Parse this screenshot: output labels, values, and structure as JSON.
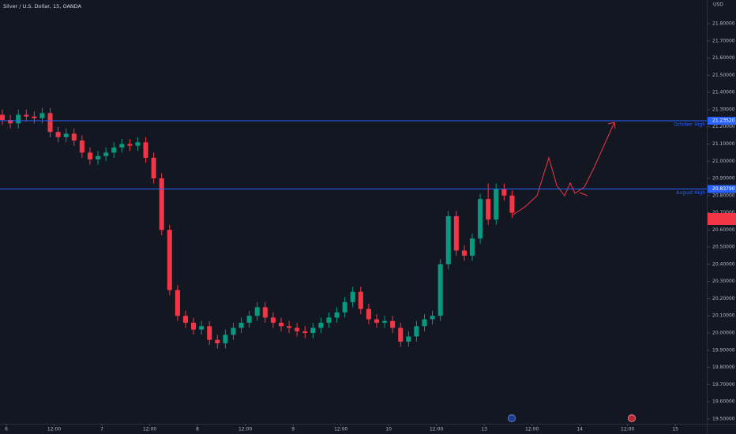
{
  "chart_data": {
    "type": "candlestick",
    "title": "Silver / U.S. Dollar, 15, OANDA",
    "y_unit": "USD",
    "up_color": "#089981",
    "down_color": "#f23645",
    "line_color": "#2962ff",
    "xlim": [
      -1.6,
      175.9
    ],
    "ylim": [
      19.472,
      21.938
    ],
    "xticks": [
      {
        "value": 0,
        "label": "6"
      },
      {
        "value": 12,
        "label": "12:00"
      },
      {
        "value": 24,
        "label": "7"
      },
      {
        "value": 36,
        "label": "12:00"
      },
      {
        "value": 48,
        "label": "8"
      },
      {
        "value": 60,
        "label": "12:00"
      },
      {
        "value": 72,
        "label": "9"
      },
      {
        "value": 84,
        "label": "12:00"
      },
      {
        "value": 96,
        "label": "10"
      },
      {
        "value": 108,
        "label": "12:00"
      },
      {
        "value": 120,
        "label": "13"
      },
      {
        "value": 132,
        "label": "12:00"
      },
      {
        "value": 144,
        "label": "14"
      },
      {
        "value": 156,
        "label": "12:00"
      },
      {
        "value": 168,
        "label": "15"
      }
    ],
    "yticks": [
      {
        "value": 19.5,
        "label": "19.50000"
      },
      {
        "value": 19.6,
        "label": "19.60000"
      },
      {
        "value": 19.7,
        "label": "19.70000"
      },
      {
        "value": 19.8,
        "label": "19.80000"
      },
      {
        "value": 19.9,
        "label": "19.90000"
      },
      {
        "value": 20.0,
        "label": "20.00000"
      },
      {
        "value": 20.1,
        "label": "20.10000"
      },
      {
        "value": 20.2,
        "label": "20.20000"
      },
      {
        "value": 20.3,
        "label": "20.30000"
      },
      {
        "value": 20.4,
        "label": "20.40000"
      },
      {
        "value": 20.5,
        "label": "20.50000"
      },
      {
        "value": 20.6,
        "label": "20.60000"
      },
      {
        "value": 20.7,
        "label": "20.70000"
      },
      {
        "value": 20.8,
        "label": "20.80000"
      },
      {
        "value": 20.9,
        "label": "20.90000"
      },
      {
        "value": 21.0,
        "label": "21.00000"
      },
      {
        "value": 21.1,
        "label": "21.10000"
      },
      {
        "value": 21.2,
        "label": "21.20000"
      },
      {
        "value": 21.3,
        "label": "21.30000"
      },
      {
        "value": 21.4,
        "label": "21.40000"
      },
      {
        "value": 21.5,
        "label": "21.50000"
      },
      {
        "value": 21.6,
        "label": "21.60000"
      },
      {
        "value": 21.7,
        "label": "21.70000"
      },
      {
        "value": 21.8,
        "label": "21.80000"
      }
    ],
    "hlines": [
      {
        "name": "October High",
        "value": 21.2352,
        "value_label": "21.23520"
      },
      {
        "name": "August High",
        "value": 20.8379,
        "value_label": "20.83790"
      }
    ],
    "x": [
      -1,
      1,
      3,
      5,
      7,
      9,
      11,
      13,
      15,
      17,
      19,
      21,
      23,
      25,
      27,
      29,
      31,
      33,
      35,
      37,
      39,
      41,
      43,
      45,
      47,
      49,
      51,
      53,
      55,
      57,
      59,
      61,
      63,
      65,
      67,
      69,
      71,
      73,
      75,
      77,
      79,
      81,
      83,
      85,
      87,
      89,
      91,
      93,
      95,
      97,
      99,
      101,
      103,
      105,
      107,
      109,
      111,
      113,
      115,
      117,
      119,
      121,
      123,
      125,
      127
    ],
    "open": [
      21.27,
      21.24,
      21.22,
      21.27,
      21.26,
      21.25,
      21.28,
      21.17,
      21.14,
      21.16,
      21.12,
      21.05,
      21.01,
      21.03,
      21.05,
      21.08,
      21.1,
      21.09,
      21.11,
      21.02,
      20.9,
      20.6,
      20.25,
      20.1,
      20.06,
      20.02,
      20.04,
      19.96,
      19.94,
      19.99,
      20.03,
      20.06,
      20.1,
      20.15,
      20.09,
      20.06,
      20.04,
      20.03,
      20.01,
      20.0,
      20.03,
      20.06,
      20.09,
      20.12,
      20.18,
      20.24,
      20.14,
      20.08,
      20.06,
      20.07,
      20.03,
      19.95,
      19.98,
      20.04,
      20.08,
      20.1,
      20.4,
      20.68,
      20.48,
      20.45,
      20.55,
      20.78,
      20.66,
      20.84,
      20.8
    ],
    "high": [
      21.3,
      21.27,
      21.3,
      21.3,
      21.29,
      21.31,
      21.31,
      21.2,
      21.19,
      21.19,
      21.15,
      21.08,
      21.06,
      21.08,
      21.11,
      21.13,
      21.13,
      21.14,
      21.14,
      21.05,
      20.93,
      20.63,
      20.28,
      20.13,
      20.09,
      20.07,
      20.07,
      19.99,
      20.02,
      20.06,
      20.09,
      20.13,
      20.18,
      20.18,
      20.12,
      20.09,
      20.07,
      20.06,
      20.04,
      20.06,
      20.09,
      20.12,
      20.15,
      20.21,
      20.27,
      20.27,
      20.17,
      20.11,
      20.1,
      20.1,
      20.06,
      20.01,
      20.07,
      20.11,
      20.13,
      20.43,
      20.71,
      20.71,
      20.51,
      20.58,
      20.81,
      20.87,
      20.87,
      20.87,
      20.83
    ],
    "low": [
      21.21,
      21.19,
      21.19,
      21.23,
      21.22,
      21.22,
      21.14,
      21.11,
      21.11,
      21.09,
      21.02,
      20.98,
      20.98,
      21.0,
      21.02,
      21.05,
      21.06,
      21.06,
      20.99,
      20.87,
      20.57,
      20.22,
      20.07,
      20.03,
      19.99,
      19.99,
      19.93,
      19.91,
      19.91,
      19.96,
      20.0,
      20.03,
      20.07,
      20.06,
      20.03,
      20.01,
      20.0,
      19.98,
      19.97,
      19.97,
      20.0,
      20.03,
      20.06,
      20.09,
      20.15,
      20.11,
      20.05,
      20.03,
      20.03,
      20.0,
      19.92,
      19.92,
      19.95,
      20.01,
      20.05,
      20.07,
      20.37,
      20.45,
      20.42,
      20.42,
      20.52,
      20.63,
      20.63,
      20.77,
      20.67
    ],
    "close": [
      21.24,
      21.22,
      21.27,
      21.26,
      21.25,
      21.28,
      21.17,
      21.14,
      21.16,
      21.12,
      21.05,
      21.01,
      21.03,
      21.05,
      21.08,
      21.1,
      21.09,
      21.11,
      21.02,
      20.9,
      20.6,
      20.25,
      20.1,
      20.06,
      20.02,
      20.04,
      19.96,
      19.94,
      19.99,
      20.03,
      20.06,
      20.1,
      20.15,
      20.09,
      20.06,
      20.04,
      20.03,
      20.01,
      20.0,
      20.03,
      20.06,
      20.09,
      20.12,
      20.18,
      20.24,
      20.14,
      20.08,
      20.06,
      20.07,
      20.03,
      19.95,
      19.98,
      20.04,
      20.08,
      20.1,
      20.4,
      20.68,
      20.48,
      20.45,
      20.55,
      20.78,
      20.66,
      20.84,
      20.8,
      20.7
    ]
  }
}
